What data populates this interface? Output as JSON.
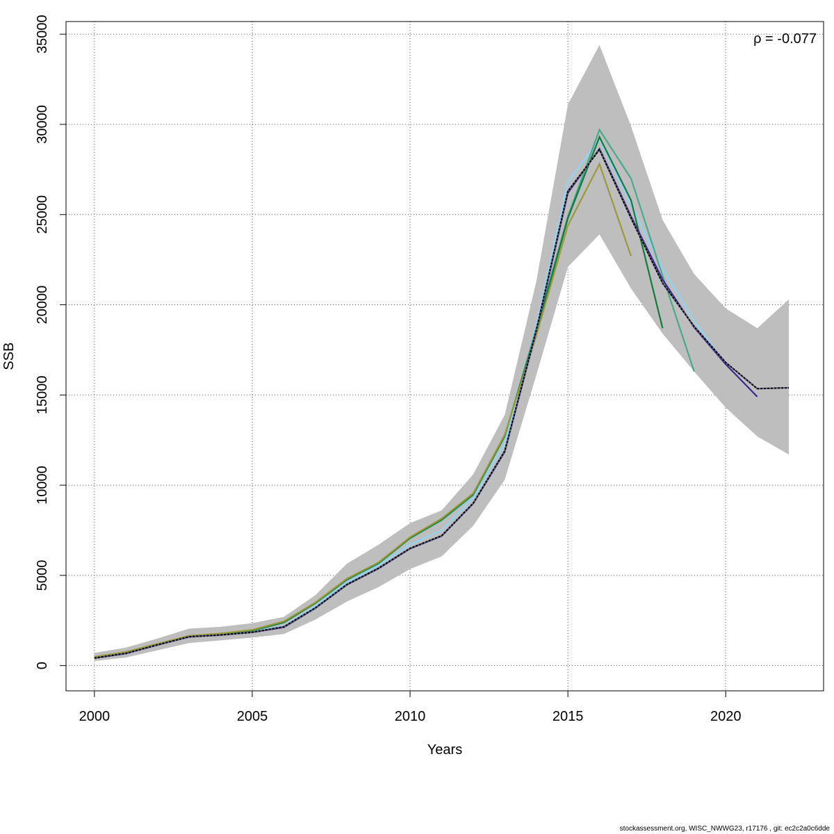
{
  "chart_data": {
    "type": "line",
    "xlabel": "Years",
    "ylabel": "SSB",
    "xlim": [
      1999.1,
      2023.1
    ],
    "ylim": [
      -1400,
      35700
    ],
    "xticks": [
      2000,
      2005,
      2010,
      2015,
      2020
    ],
    "yticks": [
      0,
      5000,
      10000,
      15000,
      20000,
      25000,
      30000,
      35000
    ],
    "grid": true,
    "annotation": "ρ = -0.077",
    "confidence_band": {
      "x": [
        2000,
        2001,
        2002,
        2003,
        2004,
        2005,
        2006,
        2007,
        2008,
        2009,
        2010,
        2011,
        2012,
        2013,
        2014,
        2015,
        2016,
        2017,
        2018,
        2019,
        2020,
        2021,
        2022
      ],
      "upper": [
        700,
        1000,
        1500,
        2050,
        2150,
        2350,
        2700,
        3900,
        5650,
        6700,
        7900,
        8600,
        10600,
        13900,
        21300,
        31100,
        34400,
        29900,
        24700,
        21700,
        19800,
        18700,
        20300
      ],
      "lower": [
        250,
        450,
        850,
        1250,
        1400,
        1550,
        1750,
        2550,
        3550,
        4350,
        5350,
        6050,
        7750,
        10300,
        16100,
        22100,
        23900,
        20900,
        18400,
        16300,
        14300,
        12700,
        11700
      ]
    },
    "series": [
      {
        "color": "#000000",
        "dashed": true,
        "x": [
          2000,
          2001,
          2002,
          2003,
          2004,
          2005,
          2006,
          2007,
          2008,
          2009,
          2010,
          2011,
          2012,
          2013,
          2014,
          2015,
          2016,
          2017,
          2018,
          2019,
          2020,
          2021,
          2022
        ],
        "values": [
          420,
          680,
          1150,
          1600,
          1700,
          1850,
          2150,
          3200,
          4500,
          5400,
          6500,
          7200,
          9000,
          11900,
          18600,
          26300,
          28600,
          24800,
          21200,
          18800,
          16800,
          15350,
          15400
        ]
      },
      {
        "color": "#8fd4f5",
        "dashed": false,
        "x": [
          2000,
          2001,
          2002,
          2003,
          2004,
          2005,
          2006,
          2007,
          2008,
          2009,
          2010,
          2011,
          2012,
          2013,
          2014,
          2015,
          2016,
          2017,
          2018,
          2019,
          2020
        ],
        "values": [
          440,
          700,
          1170,
          1620,
          1720,
          1870,
          2180,
          3300,
          4600,
          5550,
          6700,
          7500,
          9300,
          12300,
          18900,
          26800,
          29200,
          25500,
          22000,
          19100,
          16700
        ]
      },
      {
        "color": "#4aa88c",
        "dashed": false,
        "x": [
          2000,
          2001,
          2002,
          2003,
          2004,
          2005,
          2006,
          2007,
          2008,
          2009,
          2010,
          2011,
          2012,
          2013,
          2014,
          2015,
          2016,
          2017,
          2018,
          2019
        ],
        "values": [
          450,
          720,
          1190,
          1630,
          1740,
          1920,
          2380,
          3450,
          4750,
          5650,
          7050,
          8050,
          9450,
          12700,
          18700,
          24900,
          29700,
          27000,
          21600,
          16300
        ]
      },
      {
        "color": "#127a3c",
        "dashed": false,
        "x": [
          2000,
          2001,
          2002,
          2003,
          2004,
          2005,
          2006,
          2007,
          2008,
          2009,
          2010,
          2011,
          2012,
          2013,
          2014,
          2015,
          2016,
          2017,
          2018
        ],
        "values": [
          460,
          740,
          1200,
          1640,
          1760,
          1950,
          2400,
          3470,
          4780,
          5680,
          7080,
          8100,
          9500,
          12750,
          18500,
          24800,
          29300,
          25800,
          18700
        ]
      },
      {
        "color": "#9a9a3a",
        "dashed": false,
        "x": [
          2000,
          2001,
          2002,
          2003,
          2004,
          2005,
          2006,
          2007,
          2008,
          2009,
          2010,
          2011,
          2012,
          2013,
          2014,
          2015,
          2016,
          2017
        ],
        "values": [
          480,
          760,
          1210,
          1650,
          1780,
          1980,
          2450,
          3500,
          4820,
          5720,
          7120,
          8150,
          9550,
          12800,
          18300,
          24400,
          27800,
          22700
        ]
      },
      {
        "color": "#3a2a8c",
        "dashed": false,
        "x": [
          2000,
          2001,
          2002,
          2003,
          2004,
          2005,
          2006,
          2007,
          2008,
          2009,
          2010,
          2011,
          2012,
          2013,
          2014,
          2015,
          2016,
          2017,
          2018,
          2019,
          2020,
          2021
        ],
        "values": [
          410,
          670,
          1140,
          1590,
          1690,
          1840,
          2120,
          3180,
          4480,
          5380,
          6480,
          7180,
          8980,
          11850,
          18550,
          26200,
          28650,
          24900,
          21400,
          18750,
          16700,
          14900
        ]
      }
    ]
  },
  "footer": "stockassessment.org, WISC_NWWG23, r17176 , git: ec2c2a0c6dde"
}
